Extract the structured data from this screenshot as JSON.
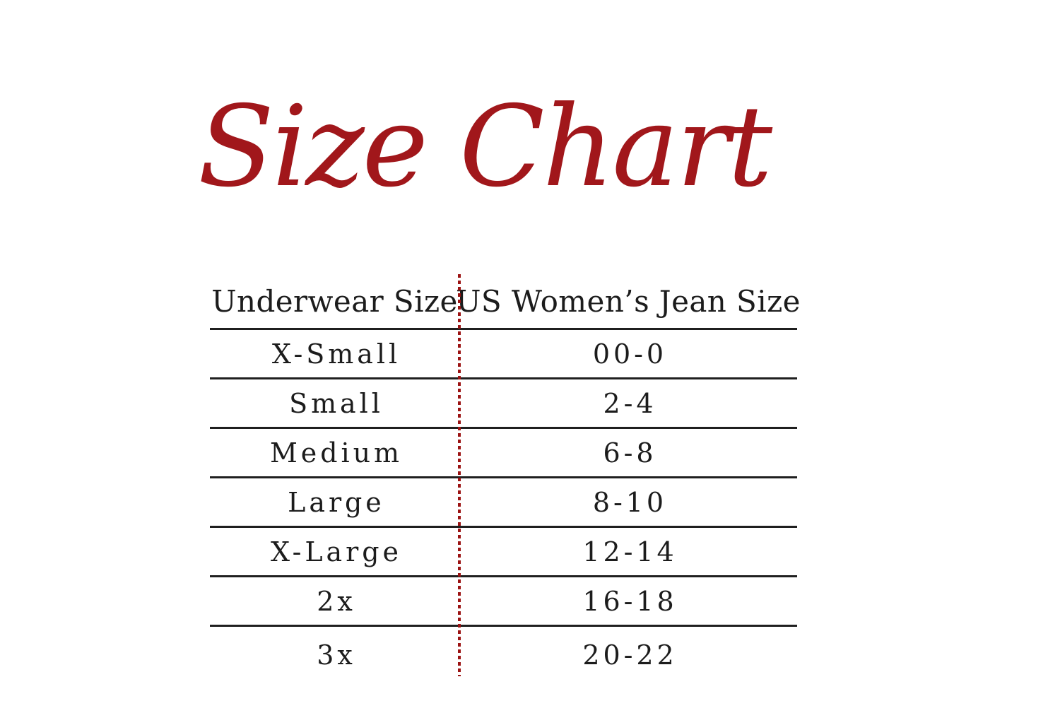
{
  "title": {
    "text": "Size Chart"
  },
  "colors": {
    "accent": "#a1171b",
    "divider": "#9b1212",
    "line": "#1f1f1f",
    "text": "#1c1c1c",
    "bg": "#ffffff"
  },
  "table": {
    "headers": [
      "Underwear Size",
      "US Women’s Jean Size"
    ],
    "rows": [
      {
        "size": "X-Small",
        "jean": "00-0"
      },
      {
        "size": "Small",
        "jean": "2-4"
      },
      {
        "size": "Medium",
        "jean": "6-8"
      },
      {
        "size": "Large",
        "jean": "8-10"
      },
      {
        "size": "X-Large",
        "jean": "12-14"
      },
      {
        "size": "2x",
        "jean": "16-18"
      },
      {
        "size": "3x",
        "jean": "20-22"
      }
    ]
  }
}
